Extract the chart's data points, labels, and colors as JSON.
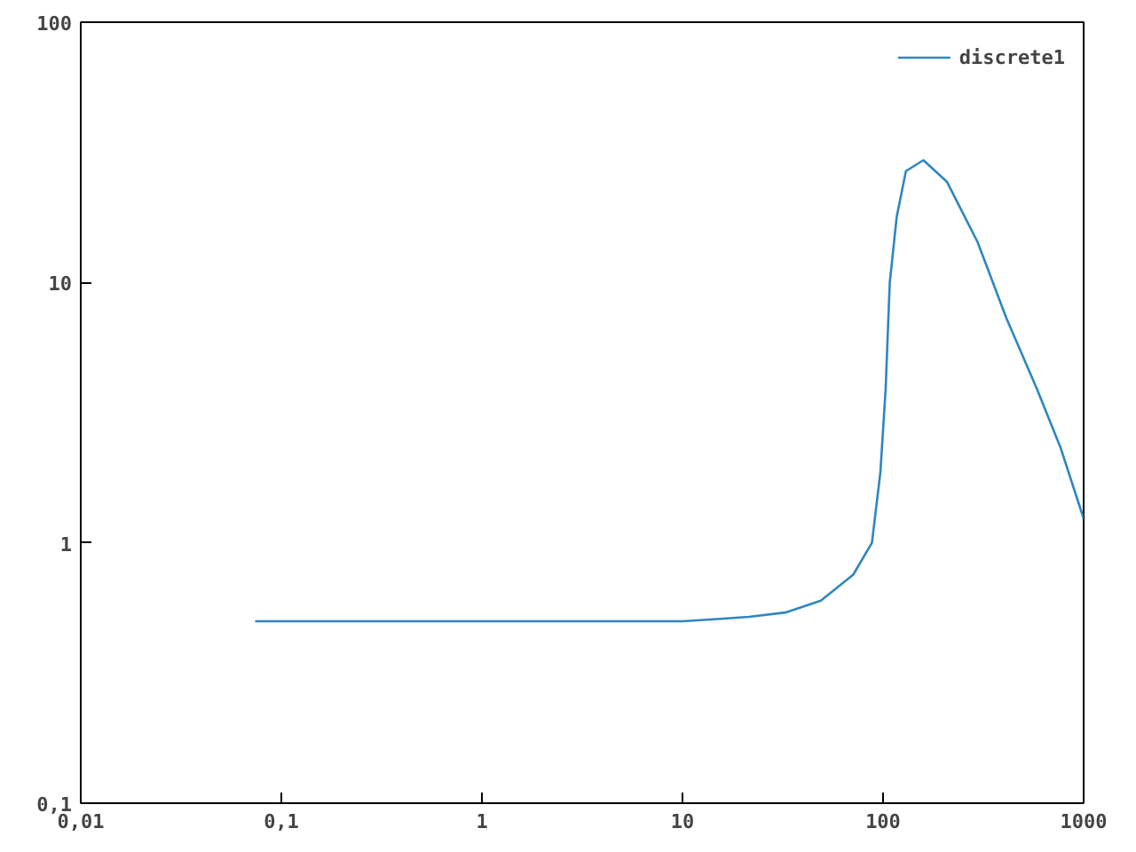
{
  "chart_data": {
    "type": "line",
    "log": "xy",
    "xlim": [
      0.01,
      1000
    ],
    "ylim": [
      0.1,
      100
    ],
    "xticks": [
      {
        "value": 0.01,
        "label": "0,01"
      },
      {
        "value": 0.1,
        "label": "0,1"
      },
      1,
      10,
      100,
      1000
    ],
    "yticks": [
      {
        "value": 0.1,
        "label": "0,1"
      },
      1,
      10,
      100
    ],
    "grid": false,
    "legend": "top right",
    "series": [
      {
        "name": "discrete1",
        "color": "#2f86c0",
        "x": [
          0.074,
          1,
          10,
          15,
          21.5,
          32.6,
          49,
          71,
          88,
          97,
          103,
          108,
          117,
          130,
          159,
          208,
          296,
          412,
          585,
          766,
          1000
        ],
        "values": [
          0.5,
          0.5,
          0.5,
          0.51,
          0.52,
          0.54,
          0.6,
          0.755,
          1.0,
          1.87,
          3.9,
          10,
          17.9,
          26.8,
          29.5,
          24.4,
          14.3,
          7.3,
          3.9,
          2.33,
          1.24
        ]
      }
    ]
  }
}
